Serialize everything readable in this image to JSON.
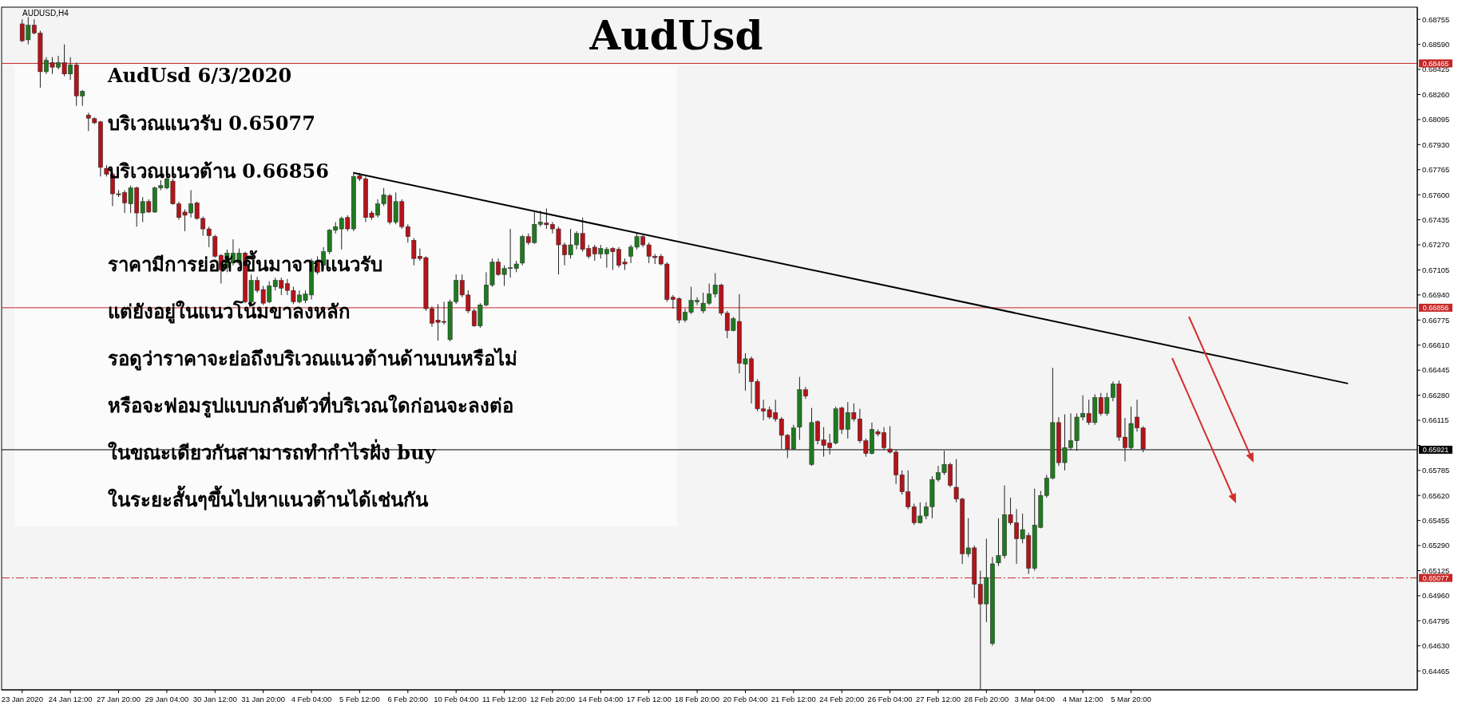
{
  "chart_data": {
    "type": "candlestick",
    "title": "AudUsd",
    "subtitle": "AUDUSD,H4",
    "annotations": [
      "AudUsd 6/3/2020",
      "บริเวณแนวรับ 0.65077",
      "บริเวณแนวต้าน 0.66856",
      "ราคามีการย่อตัวขึ้นมาจากแนวรับ",
      "แต่ยังอยู่ในแนวโน้มขาลงหลัก",
      "รอดูว่าราคาจะย่อถึงบริเวณแนวต้านด้านบนหรือไม่",
      "หรือจะฟอมรูปแบบกลับตัวที่บริเวณใดก่อนจะลงต่อ",
      "ในขณะเดียวกันสามารถทำกำไรฝั่ง buy",
      "ในระยะสั้นๆขึ้นไปหาแนวต้านได้เช่นกัน"
    ],
    "categories": [
      "23 Jan 2020",
      null,
      null,
      null,
      null,
      null,
      null,
      null,
      "24 Jan 12:00",
      null,
      null,
      null,
      null,
      null,
      null,
      null,
      "27 Jan 20:00",
      null,
      null,
      null,
      null,
      null,
      null,
      null,
      "29 Jan 04:00",
      null,
      null,
      null,
      null,
      null,
      null,
      null,
      "30 Jan 12:00",
      null,
      null,
      null,
      null,
      null,
      null,
      null,
      "31 Jan 20:00",
      null,
      null,
      null,
      null,
      null,
      null,
      null,
      "4 Feb 04:00",
      null,
      null,
      null,
      null,
      null,
      null,
      null,
      "5 Feb 12:00",
      null,
      null,
      null,
      null,
      null,
      null,
      null,
      "6 Feb 20:00",
      null,
      null,
      null,
      null,
      null,
      null,
      null,
      "10 Feb 04:00",
      null,
      null,
      null,
      null,
      null,
      null,
      null,
      "11 Feb 12:00",
      null,
      null,
      null,
      null,
      null,
      null,
      null,
      "12 Feb 20:00",
      null,
      null,
      null,
      null,
      null,
      null,
      null,
      "14 Feb 04:00",
      null,
      null,
      null,
      null,
      null,
      null,
      null,
      "17 Feb 12:00",
      null,
      null,
      null,
      null,
      null,
      null,
      null,
      "18 Feb 20:00",
      null,
      null,
      null,
      null,
      null,
      null,
      null,
      "20 Feb 04:00",
      null,
      null,
      null,
      null,
      null,
      null,
      null,
      "21 Feb 12:00",
      null,
      null,
      null,
      null,
      null,
      null,
      null,
      "24 Feb 20:00",
      null,
      null,
      null,
      null,
      null,
      null,
      null,
      "26 Feb 04:00",
      null,
      null,
      null,
      null,
      null,
      null,
      null,
      "27 Feb 12:00",
      null,
      null,
      null,
      null,
      null,
      null,
      null,
      "28 Feb 20:00",
      null,
      null,
      null,
      null,
      null,
      null,
      null,
      "3 Mar 04:00",
      null,
      null,
      null,
      null,
      null,
      null,
      null,
      "4 Mar 12:00",
      null,
      null,
      null,
      null,
      null,
      null,
      null,
      "5 Mar 20:00",
      null,
      null,
      null,
      null,
      null,
      null,
      null,
      null,
      null,
      null,
      null,
      null,
      null,
      null,
      null,
      null,
      null,
      null,
      null,
      null,
      null,
      null,
      null,
      null,
      null,
      null,
      null,
      null,
      null,
      null,
      null,
      null,
      null,
      null,
      null,
      null,
      null,
      null,
      null,
      null,
      null,
      null,
      null,
      null,
      null,
      null,
      null
    ],
    "ohlc": [
      [
        0.68725,
        0.68755,
        0.68605,
        0.68614
      ],
      [
        0.6862,
        0.6877,
        0.6859,
        0.68716
      ],
      [
        0.68716,
        0.68755,
        0.68656,
        0.68665
      ],
      [
        0.68665,
        0.6868,
        0.68305,
        0.6841
      ],
      [
        0.6841,
        0.68506,
        0.68395,
        0.68485
      ],
      [
        0.6847,
        0.68506,
        0.68395,
        0.6844
      ],
      [
        0.6844,
        0.68515,
        0.68425,
        0.6847
      ],
      [
        0.6847,
        0.6859,
        0.6838,
        0.68395
      ],
      [
        0.68395,
        0.68506,
        0.68356,
        0.68455
      ],
      [
        0.68455,
        0.6847,
        0.68185,
        0.68251
      ],
      [
        0.68251,
        0.6829,
        0.68185,
        0.68281
      ],
      [
        0.68125,
        0.6814,
        0.6802,
        0.68104
      ],
      [
        0.68101,
        0.6811,
        0.68065,
        0.68074
      ],
      [
        0.6808,
        0.68086,
        0.6772,
        0.6778
      ],
      [
        0.67774,
        0.67795,
        0.6772,
        0.67735
      ],
      [
        0.67735,
        0.6775,
        0.67525,
        0.67606
      ],
      [
        0.67606,
        0.6763,
        0.67585,
        0.676
      ],
      [
        0.67615,
        0.6763,
        0.6748,
        0.67546
      ],
      [
        0.6754,
        0.6766,
        0.6748,
        0.67645
      ],
      [
        0.67645,
        0.67654,
        0.6739,
        0.6748
      ],
      [
        0.6748,
        0.67585,
        0.6742,
        0.67555
      ],
      [
        0.67555,
        0.6757,
        0.6748,
        0.67486
      ],
      [
        0.67486,
        0.67654,
        0.6748,
        0.67645
      ],
      [
        0.67645,
        0.67696,
        0.6763,
        0.6766
      ],
      [
        0.67645,
        0.6772,
        0.67636,
        0.67705
      ],
      [
        0.6769,
        0.67705,
        0.67534,
        0.6754
      ],
      [
        0.6754,
        0.67555,
        0.67435,
        0.6745
      ],
      [
        0.67486,
        0.67504,
        0.6736,
        0.67465
      ],
      [
        0.6748,
        0.6763,
        0.6745,
        0.6754
      ],
      [
        0.67546,
        0.67555,
        0.67435,
        0.67444
      ],
      [
        0.67444,
        0.67456,
        0.6733,
        0.67375
      ],
      [
        0.67375,
        0.6739,
        0.67255,
        0.6733
      ],
      [
        0.67324,
        0.67336,
        0.67186,
        0.67195
      ],
      [
        0.67201,
        0.6721,
        0.67015,
        0.67105
      ],
      [
        0.6712,
        0.6724,
        0.6709,
        0.67216
      ],
      [
        0.6715,
        0.67306,
        0.67135,
        0.67216
      ],
      [
        0.6715,
        0.67246,
        0.67135,
        0.67216
      ],
      [
        0.67216,
        0.67225,
        0.66886,
        0.66895
      ],
      [
        0.66895,
        0.67075,
        0.66886,
        0.67036
      ],
      [
        0.67036,
        0.6706,
        0.66955,
        0.6697
      ],
      [
        0.66976,
        0.67,
        0.66874,
        0.66886
      ],
      [
        0.66895,
        0.6703,
        0.66886,
        0.67
      ],
      [
        0.66994,
        0.67054,
        0.6697,
        0.67036
      ],
      [
        0.67036,
        0.67054,
        0.6694,
        0.66985
      ],
      [
        0.67015,
        0.67045,
        0.6694,
        0.6697
      ],
      [
        0.6697,
        0.66994,
        0.6688,
        0.66895
      ],
      [
        0.66895,
        0.6697,
        0.66886,
        0.6694
      ],
      [
        0.66904,
        0.6697,
        0.66886,
        0.66946
      ],
      [
        0.6694,
        0.6718,
        0.6691,
        0.67165
      ],
      [
        0.67165,
        0.67195,
        0.67075,
        0.6709
      ],
      [
        0.67135,
        0.67255,
        0.67105,
        0.67225
      ],
      [
        0.67225,
        0.67375,
        0.6721,
        0.67366
      ],
      [
        0.67366,
        0.6742,
        0.67345,
        0.6739
      ],
      [
        0.67375,
        0.67456,
        0.6724,
        0.67444
      ],
      [
        0.6745,
        0.67465,
        0.6736,
        0.67375
      ],
      [
        0.67375,
        0.6775,
        0.6736,
        0.6772
      ],
      [
        0.67726,
        0.67744,
        0.6769,
        0.67705
      ],
      [
        0.67705,
        0.6772,
        0.6742,
        0.6745
      ],
      [
        0.6748,
        0.67495,
        0.67435,
        0.6745
      ],
      [
        0.67465,
        0.6757,
        0.6745,
        0.6754
      ],
      [
        0.6754,
        0.67645,
        0.67525,
        0.676
      ],
      [
        0.67594,
        0.67606,
        0.67405,
        0.6742
      ],
      [
        0.6742,
        0.67615,
        0.67405,
        0.67555
      ],
      [
        0.67555,
        0.6757,
        0.67375,
        0.6739
      ],
      [
        0.6739,
        0.67405,
        0.67285,
        0.67324
      ],
      [
        0.673,
        0.67315,
        0.67135,
        0.6718
      ],
      [
        0.67195,
        0.67246,
        0.67165,
        0.6718
      ],
      [
        0.67186,
        0.67195,
        0.66835,
        0.6685
      ],
      [
        0.6685,
        0.66865,
        0.6673,
        0.66754
      ],
      [
        0.66775,
        0.6688,
        0.6664,
        0.6676
      ],
      [
        0.66766,
        0.66895,
        0.66745,
        0.6676
      ],
      [
        0.66646,
        0.6691,
        0.66634,
        0.66895
      ],
      [
        0.66895,
        0.67075,
        0.6688,
        0.67036
      ],
      [
        0.67036,
        0.67075,
        0.66925,
        0.6694
      ],
      [
        0.6694,
        0.6697,
        0.6682,
        0.66835
      ],
      [
        0.66835,
        0.6685,
        0.6673,
        0.66736
      ],
      [
        0.66736,
        0.66886,
        0.66724,
        0.66874
      ],
      [
        0.66874,
        0.6709,
        0.66865,
        0.67006
      ],
      [
        0.67006,
        0.6718,
        0.66994,
        0.67156
      ],
      [
        0.67156,
        0.6718,
        0.67066,
        0.67075
      ],
      [
        0.67075,
        0.67135,
        0.67,
        0.67114
      ],
      [
        0.67114,
        0.67375,
        0.67054,
        0.6712
      ],
      [
        0.67114,
        0.67165,
        0.6709,
        0.67144
      ],
      [
        0.6715,
        0.67336,
        0.67135,
        0.67324
      ],
      [
        0.67324,
        0.67345,
        0.6727,
        0.67285
      ],
      [
        0.67285,
        0.67495,
        0.67276,
        0.67405
      ],
      [
        0.67405,
        0.67495,
        0.6739,
        0.6742
      ],
      [
        0.67414,
        0.6751,
        0.67375,
        0.67402
      ],
      [
        0.67405,
        0.6742,
        0.67345,
        0.67375
      ],
      [
        0.67375,
        0.6739,
        0.67075,
        0.6727
      ],
      [
        0.6727,
        0.67285,
        0.67135,
        0.67204
      ],
      [
        0.67204,
        0.67375,
        0.6718,
        0.6727
      ],
      [
        0.6727,
        0.6736,
        0.6724,
        0.67345
      ],
      [
        0.67345,
        0.6745,
        0.67225,
        0.6724
      ],
      [
        0.67246,
        0.6727,
        0.6718,
        0.67195
      ],
      [
        0.67255,
        0.6727,
        0.67165,
        0.6721
      ],
      [
        0.6721,
        0.6727,
        0.6718,
        0.67246
      ],
      [
        0.6721,
        0.67255,
        0.6712,
        0.6724
      ],
      [
        0.67246,
        0.67255,
        0.67105,
        0.67225
      ],
      [
        0.6724,
        0.67255,
        0.6712,
        0.67135
      ],
      [
        0.67156,
        0.6718,
        0.67105,
        0.67144
      ],
      [
        0.67195,
        0.6727,
        0.6715,
        0.67255
      ],
      [
        0.67255,
        0.67345,
        0.6724,
        0.67324
      ],
      [
        0.67324,
        0.67336,
        0.67255,
        0.6727
      ],
      [
        0.6727,
        0.67285,
        0.6715,
        0.67195
      ],
      [
        0.67195,
        0.6721,
        0.67144,
        0.67186
      ],
      [
        0.67195,
        0.6721,
        0.67135,
        0.67144
      ],
      [
        0.67144,
        0.67156,
        0.66895,
        0.6691
      ],
      [
        0.66925,
        0.6694,
        0.6685,
        0.6691
      ],
      [
        0.66916,
        0.66925,
        0.66754,
        0.66775
      ],
      [
        0.66775,
        0.6685,
        0.6676,
        0.66826
      ],
      [
        0.66826,
        0.66994,
        0.66814,
        0.66904
      ],
      [
        0.66895,
        0.66925,
        0.66874,
        0.66904
      ],
      [
        0.66835,
        0.66955,
        0.6682,
        0.66886
      ],
      [
        0.66886,
        0.67015,
        0.66874,
        0.66946
      ],
      [
        0.66946,
        0.67084,
        0.66925,
        0.67006
      ],
      [
        0.67006,
        0.67015,
        0.66805,
        0.6682
      ],
      [
        0.6682,
        0.66835,
        0.66655,
        0.66706
      ],
      [
        0.66706,
        0.66796,
        0.667,
        0.66784
      ],
      [
        0.66766,
        0.66946,
        0.66424,
        0.6649
      ],
      [
        0.66484,
        0.66556,
        0.6631,
        0.6652
      ],
      [
        0.6652,
        0.66535,
        0.66226,
        0.6637
      ],
      [
        0.6637,
        0.66385,
        0.66175,
        0.6619
      ],
      [
        0.6619,
        0.6625,
        0.66115,
        0.66175
      ],
      [
        0.66184,
        0.66205,
        0.66124,
        0.66136
      ],
      [
        0.66166,
        0.6625,
        0.66106,
        0.66124
      ],
      [
        0.66124,
        0.66136,
        0.65926,
        0.66016
      ],
      [
        0.66016,
        0.66025,
        0.65866,
        0.65926
      ],
      [
        0.65926,
        0.66085,
        0.6592,
        0.66064
      ],
      [
        0.6607,
        0.664,
        0.65986,
        0.66316
      ],
      [
        0.66316,
        0.66334,
        0.66256,
        0.66274
      ],
      [
        0.65824,
        0.66196,
        0.65815,
        0.661
      ],
      [
        0.66106,
        0.66115,
        0.65956,
        0.6598
      ],
      [
        0.65986,
        0.6607,
        0.65875,
        0.6595
      ],
      [
        0.65965,
        0.66025,
        0.6589,
        0.65935
      ],
      [
        0.65965,
        0.66205,
        0.65956,
        0.6619
      ],
      [
        0.66196,
        0.66205,
        0.66025,
        0.66055
      ],
      [
        0.66055,
        0.66235,
        0.65995,
        0.66166
      ],
      [
        0.66166,
        0.66226,
        0.66106,
        0.66124
      ],
      [
        0.66124,
        0.6619,
        0.65965,
        0.6598
      ],
      [
        0.6598,
        0.65995,
        0.65875,
        0.65896
      ],
      [
        0.65896,
        0.661,
        0.6589,
        0.66055
      ],
      [
        0.6604,
        0.66055,
        0.6601,
        0.66025
      ],
      [
        0.66034,
        0.6607,
        0.6592,
        0.65935
      ],
      [
        0.65926,
        0.66076,
        0.65896,
        0.65905
      ],
      [
        0.65905,
        0.6592,
        0.65695,
        0.65755
      ],
      [
        0.65755,
        0.65785,
        0.65626,
        0.65644
      ],
      [
        0.65644,
        0.65785,
        0.6553,
        0.65545
      ],
      [
        0.65545,
        0.65566,
        0.65425,
        0.6544
      ],
      [
        0.6544,
        0.65575,
        0.65434,
        0.65485
      ],
      [
        0.65485,
        0.65575,
        0.65464,
        0.65545
      ],
      [
        0.65545,
        0.65746,
        0.6547,
        0.65725
      ],
      [
        0.65725,
        0.65815,
        0.6571,
        0.6577
      ],
      [
        0.6577,
        0.65914,
        0.65755,
        0.65824
      ],
      [
        0.65824,
        0.65836,
        0.65674,
        0.65686
      ],
      [
        0.65674,
        0.6586,
        0.65575,
        0.65596
      ],
      [
        0.65596,
        0.65605,
        0.6517,
        0.65236
      ],
      [
        0.65236,
        0.6547,
        0.65215,
        0.65275
      ],
      [
        0.65275,
        0.6529,
        0.64945,
        0.65035
      ],
      [
        0.65035,
        0.65125,
        0.64345,
        0.64906
      ],
      [
        0.64906,
        0.65335,
        0.64786,
        0.6508
      ],
      [
        0.64645,
        0.65215,
        0.6463,
        0.6517
      ],
      [
        0.65176,
        0.6547,
        0.65155,
        0.65224
      ],
      [
        0.65224,
        0.65686,
        0.65206,
        0.65494
      ],
      [
        0.65494,
        0.65605,
        0.65425,
        0.6544
      ],
      [
        0.6544,
        0.6553,
        0.6517,
        0.65335
      ],
      [
        0.65335,
        0.655,
        0.65305,
        0.65395
      ],
      [
        0.65356,
        0.65374,
        0.65104,
        0.6514
      ],
      [
        0.6514,
        0.65665,
        0.65125,
        0.65425
      ],
      [
        0.6541,
        0.6565,
        0.65404,
        0.6562
      ],
      [
        0.6562,
        0.65755,
        0.65605,
        0.65734
      ],
      [
        0.65734,
        0.6646,
        0.65725,
        0.661
      ],
      [
        0.661,
        0.66136,
        0.65815,
        0.65836
      ],
      [
        0.65836,
        0.66154,
        0.65785,
        0.65935
      ],
      [
        0.65935,
        0.6616,
        0.6592,
        0.6598
      ],
      [
        0.6598,
        0.6616,
        0.65914,
        0.66136
      ],
      [
        0.66136,
        0.6628,
        0.66115,
        0.6616
      ],
      [
        0.6616,
        0.6625,
        0.66085,
        0.661
      ],
      [
        0.661,
        0.66286,
        0.66085,
        0.66265
      ],
      [
        0.66265,
        0.66295,
        0.66145,
        0.6616
      ],
      [
        0.6616,
        0.66295,
        0.66145,
        0.66265
      ],
      [
        0.66265,
        0.6637,
        0.6624,
        0.66355
      ],
      [
        0.66355,
        0.66376,
        0.6598,
        0.66004
      ],
      [
        0.66004,
        0.6613,
        0.65845,
        0.65935
      ],
      [
        0.65935,
        0.66205,
        0.6592,
        0.66094
      ],
      [
        0.66136,
        0.6625,
        0.6604,
        0.66064
      ],
      [
        0.66064,
        0.66076,
        0.65905,
        0.65926
      ],
      null,
      null,
      null,
      null,
      null,
      null,
      null,
      null,
      null,
      null,
      null,
      null,
      null,
      null,
      null,
      null,
      null,
      null,
      null,
      null,
      null,
      null,
      null,
      null,
      null,
      null,
      null,
      null,
      null,
      null,
      null,
      null,
      null,
      null,
      null,
      null,
      null,
      null,
      null,
      null,
      null,
      null,
      null,
      null,
      null
    ],
    "series": [
      {
        "type": "line",
        "color": "#000000",
        "values": [
          null,
          null,
          null,
          null,
          null,
          null,
          null,
          null,
          null,
          null,
          null,
          null,
          null,
          null,
          null,
          null,
          null,
          null,
          null,
          null,
          null,
          null,
          null,
          null,
          null,
          null,
          null,
          null,
          null,
          null,
          null,
          null,
          null,
          null,
          null,
          null,
          null,
          null,
          null,
          null,
          null,
          null,
          null,
          null,
          null,
          null,
          null,
          null,
          null,
          null,
          null,
          null,
          null,
          null,
          null,
          0.67744,
          null,
          null,
          null,
          null,
          null,
          null,
          null,
          null,
          null,
          null,
          null,
          null,
          null,
          null,
          null,
          null,
          null,
          null,
          null,
          null,
          null,
          null,
          null,
          null,
          null,
          null,
          null,
          null,
          null,
          null,
          null,
          null,
          null,
          null,
          null,
          null,
          null,
          null,
          null,
          null,
          null,
          null,
          null,
          null,
          null,
          null,
          null,
          null,
          null,
          null,
          null,
          null,
          null,
          null,
          null,
          null,
          null,
          null,
          null,
          null,
          null,
          null,
          null,
          null,
          null,
          null,
          null,
          null,
          null,
          null,
          null,
          null,
          null,
          null,
          null,
          null,
          null,
          null,
          null,
          null,
          null,
          null,
          null,
          null,
          null,
          null,
          null,
          null,
          null,
          null,
          null,
          null,
          null,
          null,
          null,
          null,
          null,
          null,
          null,
          null,
          null,
          null,
          null,
          null,
          null,
          null,
          null,
          null,
          null,
          null,
          null,
          null,
          null,
          null,
          null,
          null,
          null,
          null,
          null,
          null,
          null,
          null,
          null,
          null,
          null,
          null,
          null,
          null,
          null,
          null,
          null,
          null,
          null,
          null,
          null,
          null,
          null,
          null,
          null,
          null,
          null,
          null,
          null,
          null,
          null,
          null,
          null,
          null,
          null,
          null,
          null,
          null,
          null,
          null,
          null,
          null,
          null,
          null,
          null,
          null,
          null,
          null,
          null,
          null,
          0.66357,
          null,
          null,
          null,
          null,
          null,
          null,
          null,
          null,
          null,
          null,
          null
        ]
      }
    ],
    "ylim": [
      0.6434,
      0.68835
    ],
    "yticks": [
      0.68755,
      {
        "value": 0.6859,
        "label": "0.68590"
      },
      0.68425,
      {
        "value": 0.6826,
        "label": "0.68260"
      },
      0.68095,
      {
        "value": 0.6793,
        "label": "0.67930"
      },
      0.67765,
      {
        "value": 0.676,
        "label": "0.67600"
      },
      0.67435,
      {
        "value": 0.6727,
        "label": "0.67270"
      },
      0.67105,
      {
        "value": 0.6694,
        "label": "0.66940"
      },
      0.66775,
      {
        "value": 0.6661,
        "label": "0.66610"
      },
      0.66445,
      {
        "value": 0.6628,
        "label": "0.66280"
      },
      0.66115,
      {
        "value": 0.6595,
        "label": null
      },
      0.65785,
      {
        "value": 0.6562,
        "label": "0.65620"
      },
      0.65455,
      {
        "value": 0.6529,
        "label": "0.65290"
      },
      0.65125,
      {
        "value": 0.6496,
        "label": "0.64960"
      },
      0.64795,
      {
        "value": 0.6463,
        "label": "0.64630"
      },
      0.64465
    ],
    "ref_lines": [
      {
        "axis": "y",
        "value": 0.68465,
        "label": "0.68465",
        "color": "#c62828",
        "line_style": "solid"
      },
      {
        "axis": "y",
        "value": 0.66856,
        "label": "0.66856",
        "color": "#c62828",
        "line_style": "solid"
      },
      {
        "axis": "y",
        "value": 0.65921,
        "label": "0.65921",
        "color": "#000000",
        "line_style": "solid"
      },
      {
        "axis": "y",
        "value": 0.65077,
        "label": "0.65077",
        "color": "#c62828",
        "line_style": "dashed"
      }
    ]
  }
}
